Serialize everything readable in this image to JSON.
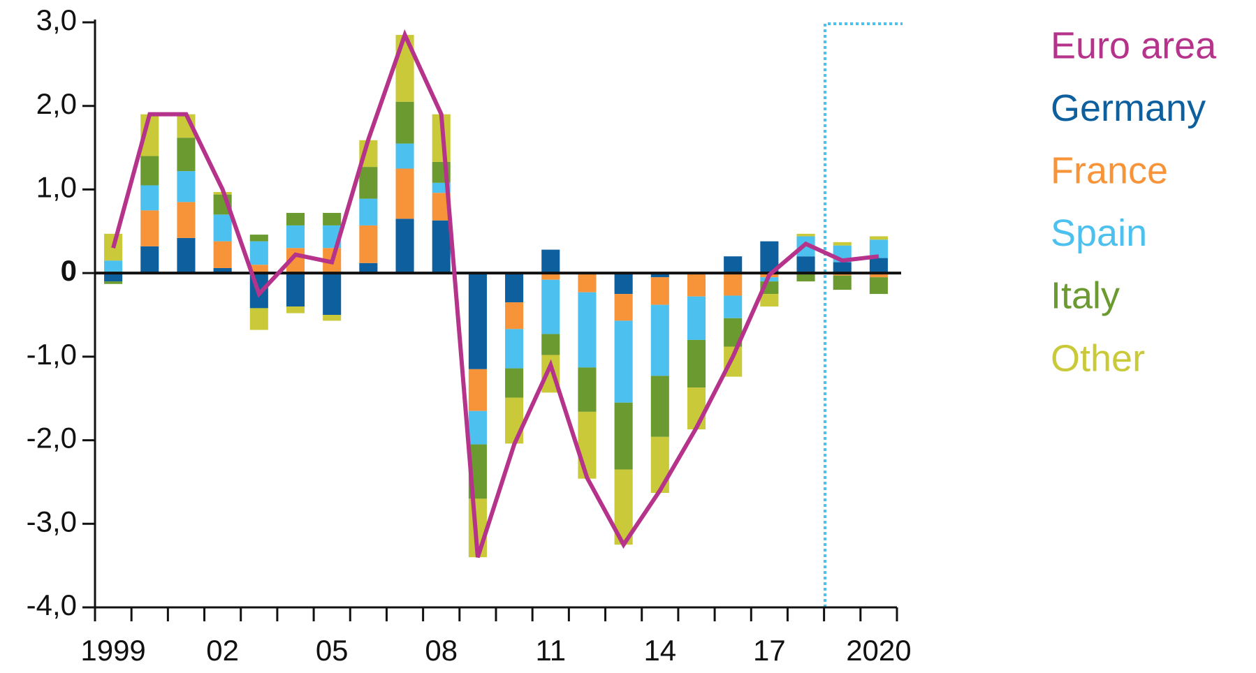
{
  "chart_data": {
    "type": "bar",
    "categories": [
      "1999",
      null,
      null,
      "02",
      null,
      null,
      "05",
      null,
      null,
      "08",
      null,
      null,
      "11",
      null,
      null,
      "14",
      null,
      null,
      "17",
      null,
      null,
      "2020"
    ],
    "series": [
      {
        "name": "Euro area",
        "type": "line",
        "color": "#b5338a",
        "values": [
          0.3,
          1.9,
          1.9,
          1.0,
          -0.25,
          0.22,
          0.13,
          1.6,
          2.85,
          1.9,
          -3.4,
          -2.05,
          -1.1,
          -2.45,
          -3.25,
          -2.6,
          -1.85,
          -1.0,
          -0.02,
          0.35,
          0.15,
          0.2
        ]
      },
      {
        "name": "Germany",
        "color": "#0d5f9e",
        "values": [
          -0.1,
          0.32,
          0.42,
          0.06,
          -0.42,
          -0.4,
          -0.5,
          0.12,
          0.65,
          0.63,
          -1.15,
          -0.35,
          0.28,
          0,
          -0.25,
          -0.05,
          0,
          0.2,
          0.38,
          0.2,
          0.13,
          0.18
        ]
      },
      {
        "name": "France",
        "color": "#f7943a",
        "values": [
          0,
          0.43,
          0.43,
          0.32,
          0.1,
          0.3,
          0.3,
          0.45,
          0.6,
          0.33,
          -0.5,
          -0.32,
          -0.08,
          -0.23,
          -0.32,
          -0.33,
          -0.28,
          -0.27,
          -0.05,
          0,
          -0.03,
          -0.05
        ]
      },
      {
        "name": "Spain",
        "color": "#4cc0ee",
        "values": [
          0.15,
          0.3,
          0.37,
          0.32,
          0.28,
          0.27,
          0.27,
          0.32,
          0.3,
          0.12,
          -0.4,
          -0.47,
          -0.65,
          -0.9,
          -0.98,
          -0.85,
          -0.52,
          -0.27,
          -0.05,
          0.24,
          0.2,
          0.22
        ]
      },
      {
        "name": "Italy",
        "color": "#6b9a30",
        "values": [
          -0.03,
          0.35,
          0.4,
          0.24,
          0.08,
          0.15,
          0.15,
          0.38,
          0.5,
          0.25,
          -0.65,
          -0.35,
          -0.25,
          -0.53,
          -0.8,
          -0.73,
          -0.57,
          -0.34,
          -0.15,
          -0.1,
          -0.17,
          -0.2
        ]
      },
      {
        "name": "Other",
        "color": "#c9c93a",
        "values": [
          0.32,
          0.5,
          0.28,
          0.03,
          -0.26,
          -0.08,
          -0.07,
          0.32,
          0.8,
          0.57,
          -0.7,
          -0.55,
          -0.45,
          -0.8,
          -0.9,
          -0.67,
          -0.5,
          -0.36,
          -0.15,
          0.03,
          0.04,
          0.04
        ]
      }
    ],
    "ylim": [
      -4,
      3
    ],
    "yticks": [
      {
        "value": -4,
        "label": "-4,0"
      },
      {
        "value": -3,
        "label": "-3,0"
      },
      {
        "value": -2,
        "label": "-2,0"
      },
      {
        "value": -1,
        "label": "-1,0"
      },
      0,
      {
        "value": 1,
        "label": "1,0"
      },
      {
        "value": 2,
        "label": "2,0"
      },
      {
        "value": 3,
        "label": "3,0"
      }
    ],
    "legend": "right"
  }
}
